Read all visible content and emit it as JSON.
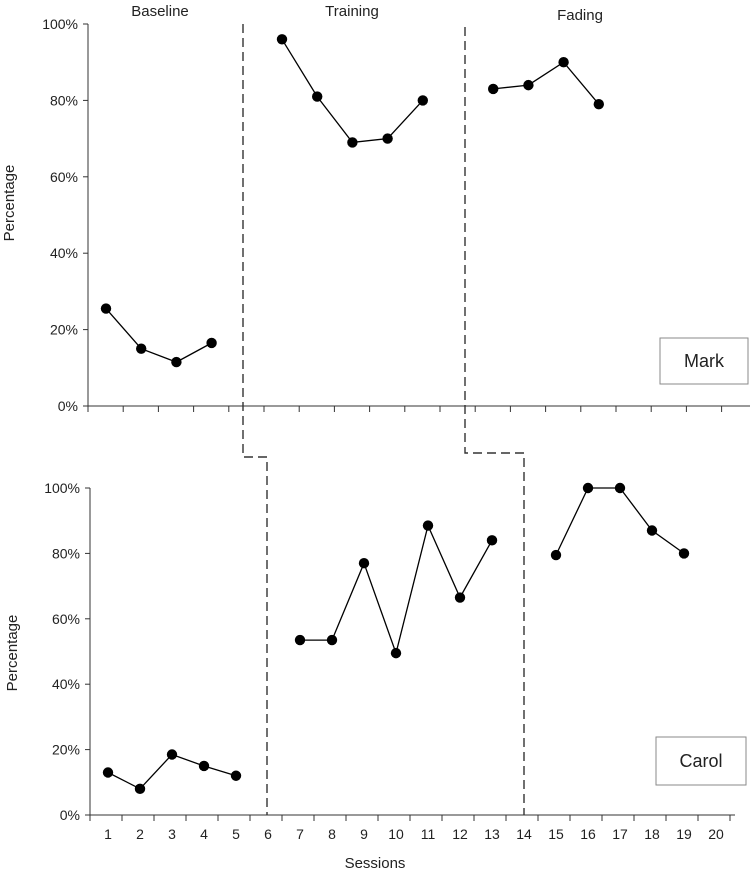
{
  "chart_data": [
    {
      "type": "line",
      "participant": "Mark",
      "ylabel": "Percentage",
      "xlabel": "",
      "ylim": [
        0,
        100
      ],
      "yticks": [
        "0%",
        "20%",
        "40%",
        "60%",
        "80%",
        "100%"
      ],
      "phases": [
        {
          "label": "Baseline",
          "points": [
            [
              1,
              25.5
            ],
            [
              2,
              15
            ],
            [
              3,
              11.5
            ],
            [
              4,
              16.5
            ]
          ]
        },
        {
          "label": "Training",
          "points": [
            [
              6,
              96
            ],
            [
              7,
              81
            ],
            [
              8,
              69
            ],
            [
              9,
              70
            ],
            [
              10,
              80
            ]
          ]
        },
        {
          "label": "Fading",
          "points": [
            [
              12,
              83
            ],
            [
              13,
              84
            ],
            [
              14,
              90
            ],
            [
              15,
              79
            ]
          ]
        }
      ]
    },
    {
      "type": "line",
      "participant": "Carol",
      "ylabel": "Percentage",
      "xlabel": "Sessions",
      "ylim": [
        0,
        100
      ],
      "yticks": [
        "0%",
        "20%",
        "40%",
        "60%",
        "80%",
        "100%"
      ],
      "xticks": [
        "1",
        "2",
        "3",
        "4",
        "5",
        "6",
        "7",
        "8",
        "9",
        "10",
        "11",
        "12",
        "13",
        "14",
        "15",
        "16",
        "17",
        "18",
        "19",
        "20"
      ],
      "phases": [
        {
          "label": "Baseline",
          "points": [
            [
              1,
              13
            ],
            [
              2,
              8
            ],
            [
              3,
              18.5
            ],
            [
              4,
              15
            ],
            [
              5,
              12
            ]
          ]
        },
        {
          "label": "Training",
          "points": [
            [
              7,
              53.5
            ],
            [
              8,
              53.5
            ],
            [
              9,
              77
            ],
            [
              10,
              49.5
            ],
            [
              11,
              88.5
            ],
            [
              12,
              66.5
            ],
            [
              13,
              84
            ]
          ]
        },
        {
          "label": "Fading",
          "points": [
            [
              15,
              79.5
            ],
            [
              16,
              100
            ],
            [
              17,
              100
            ],
            [
              18,
              87
            ],
            [
              19,
              80
            ]
          ]
        }
      ]
    }
  ]
}
